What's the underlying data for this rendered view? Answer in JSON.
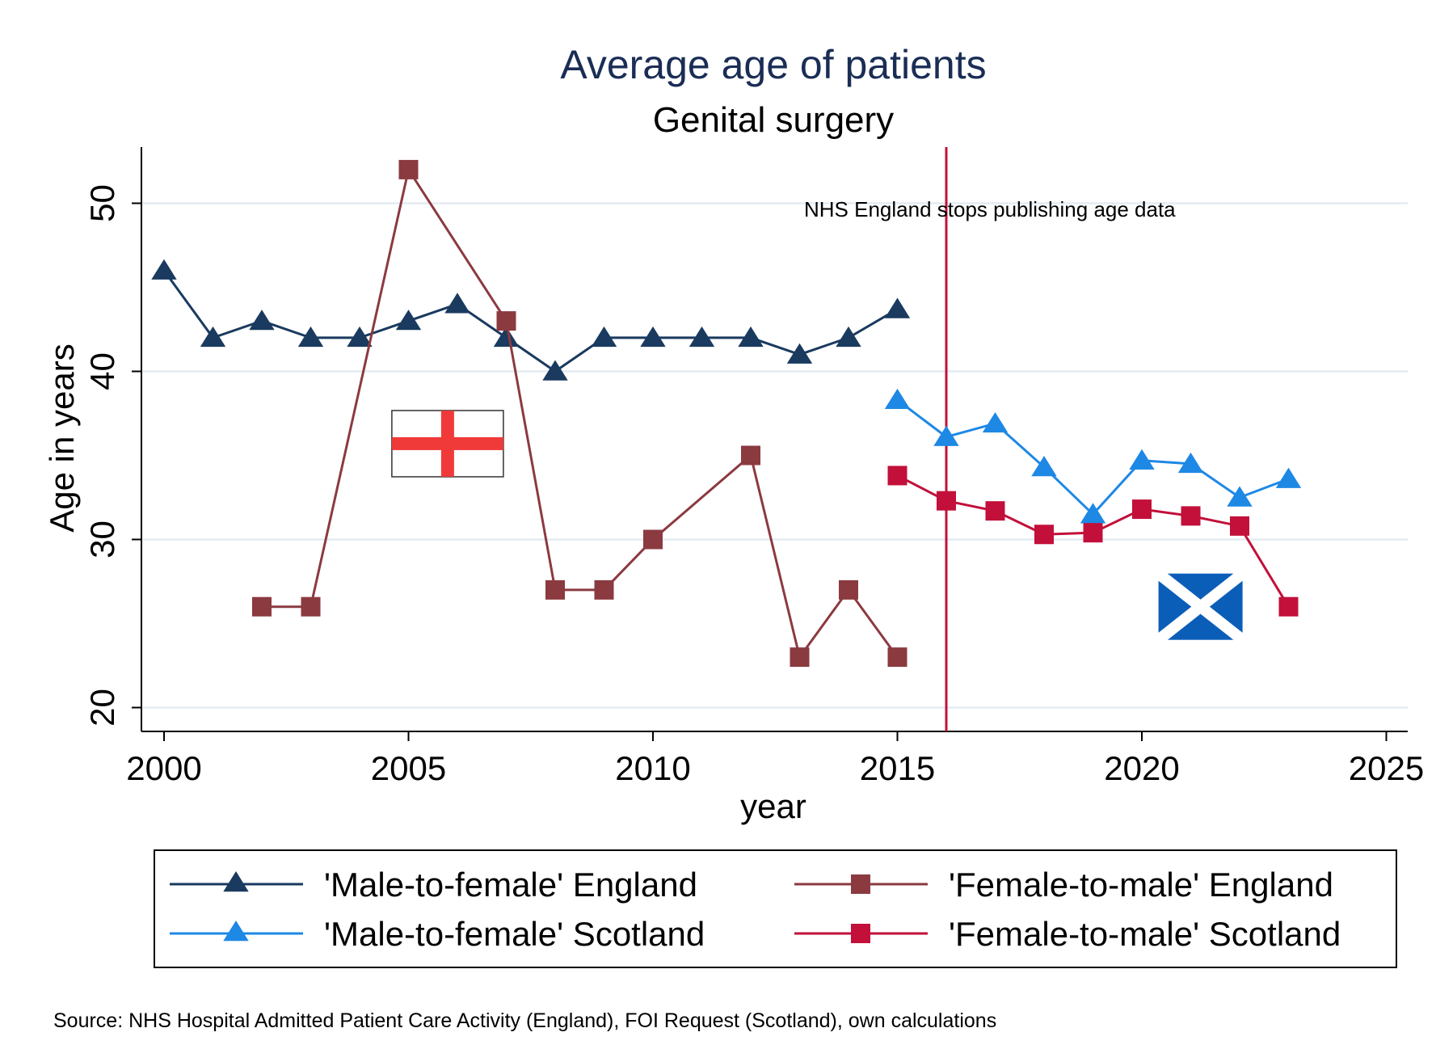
{
  "chart_data": {
    "type": "line",
    "title": "Average age of patients",
    "subtitle": "Genital surgery",
    "xlabel": "year",
    "ylabel": "Age in years",
    "xlim": [
      1999.5,
      2025.5
    ],
    "ylim": [
      19.2,
      53.3
    ],
    "xticks": [
      2000,
      2005,
      2010,
      2015,
      2020,
      2025
    ],
    "yticks": [
      20,
      30,
      40,
      50
    ],
    "grid": true,
    "legend_position": "bottom",
    "series": [
      {
        "name": "'Male-to-female' England",
        "marker": "triangle",
        "color": "#1a3a5f",
        "x": [
          2000,
          2001,
          2002,
          2003,
          2004,
          2005,
          2006,
          2007,
          2008,
          2009,
          2010,
          2011,
          2012,
          2013,
          2014,
          2015
        ],
        "values": [
          46,
          42,
          43,
          42,
          42,
          43,
          44,
          42,
          40,
          42,
          42,
          42,
          42,
          41,
          42,
          43.7
        ]
      },
      {
        "name": "'Female-to-male' England",
        "marker": "square",
        "color": "#8b3a40",
        "x": [
          2002,
          2003,
          2005,
          2007,
          2008,
          2009,
          2010,
          2012,
          2013,
          2014,
          2015
        ],
        "values": [
          26,
          26,
          52,
          43,
          27,
          27,
          30,
          35,
          23,
          27,
          23
        ]
      },
      {
        "name": "'Male-to-female' Scotland",
        "marker": "triangle",
        "color": "#1e88e5",
        "x": [
          2015,
          2016,
          2017,
          2018,
          2019,
          2020,
          2021,
          2022,
          2023
        ],
        "values": [
          38.3,
          36.1,
          36.9,
          34.3,
          31.5,
          34.7,
          34.5,
          32.5,
          33.6
        ]
      },
      {
        "name": "'Female-to-male' Scotland",
        "marker": "square",
        "color": "#c2103a",
        "x": [
          2015,
          2016,
          2017,
          2018,
          2019,
          2020,
          2021,
          2022,
          2023
        ],
        "values": [
          33.8,
          32.3,
          31.7,
          30.3,
          30.4,
          31.8,
          31.4,
          30.8,
          26
        ]
      }
    ],
    "reference_line": {
      "x": 2016,
      "color": "#c2103a",
      "label": "NHS England stops publishing age data"
    },
    "flags": [
      {
        "name": "england-flag",
        "x_center": 2005.8,
        "y_center": 35.7
      },
      {
        "name": "scotland-flag",
        "x_center": 2021.2,
        "y_center": 26
      }
    ],
    "source": "Source: NHS Hospital Admitted Patient Care Activity (England), FOI Request (Scotland), own calculations"
  }
}
